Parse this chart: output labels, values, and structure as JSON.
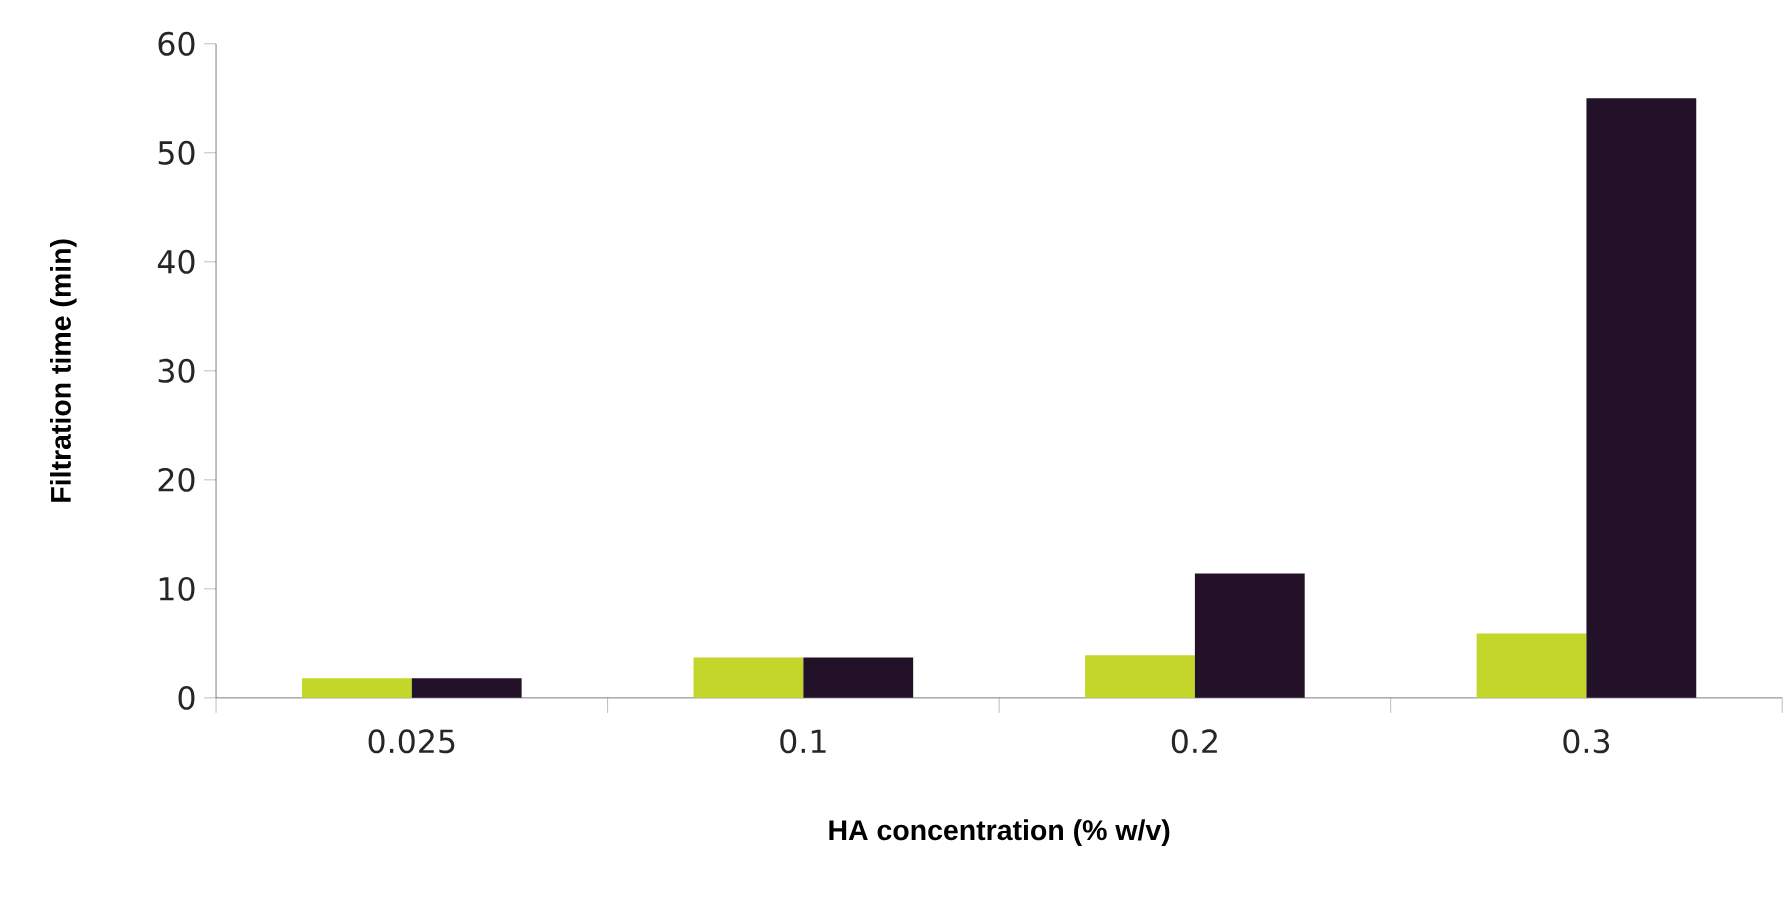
{
  "chart_data": {
    "type": "bar",
    "xlabel": "HA concentration (% w/v)",
    "ylabel": "Filtration time (min)",
    "categories": [
      "0.025",
      "0.1",
      "0.2",
      "0.3"
    ],
    "series": [
      {
        "color": "#c5d62a",
        "values": [
          1.8,
          3.7,
          3.9,
          5.9
        ]
      },
      {
        "color": "#231029",
        "values": [
          1.8,
          3.7,
          11.4,
          55
        ]
      }
    ],
    "ylim": [
      0,
      60
    ],
    "yticks": [
      0,
      10,
      20,
      30,
      40,
      50,
      60
    ],
    "grid": false
  }
}
